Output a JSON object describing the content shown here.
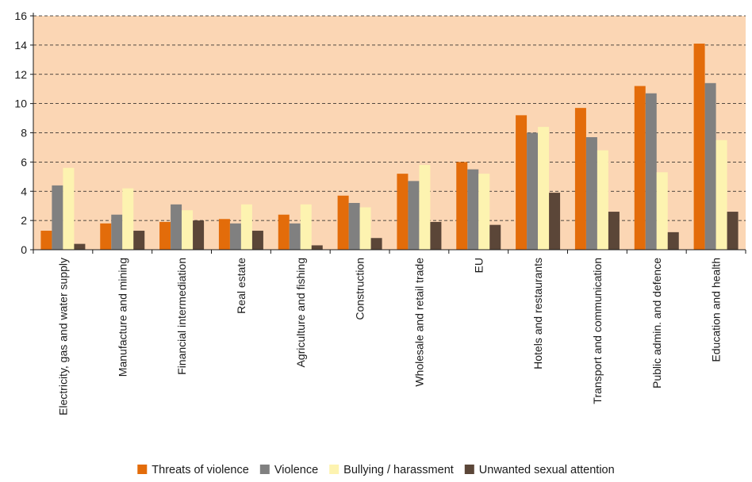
{
  "chart_data": {
    "type": "bar",
    "title": "",
    "xlabel": "",
    "ylabel": "",
    "ylim": [
      0,
      16
    ],
    "yticks": [
      "0",
      "2",
      "4",
      "6",
      "8",
      "10",
      "12",
      "14",
      "16"
    ],
    "grid": "horizontal dashed",
    "legend_position": "bottom",
    "plot_background": "#fbd6b4",
    "categories": [
      "Electricity, gas and water supply",
      "Manufacture and mining",
      "Financial intermediation",
      "Real estate",
      "Agriculture and fishing",
      "Construction",
      "Wholesale and retail trade",
      "EU",
      "Hotels and restaurants",
      "Transport and communication",
      "Public admin. and defence",
      "Education and health"
    ],
    "series": [
      {
        "name": "Threats of violence",
        "color": "#e36c0a",
        "values": [
          1.3,
          1.8,
          1.9,
          2.1,
          2.4,
          3.7,
          5.2,
          6.0,
          9.2,
          9.7,
          11.2,
          14.1
        ]
      },
      {
        "name": "Violence",
        "color": "#808080",
        "values": [
          4.4,
          2.4,
          3.1,
          1.8,
          1.8,
          3.2,
          4.7,
          5.5,
          8.0,
          7.7,
          10.7,
          11.4
        ]
      },
      {
        "name": "Bullying / harassment",
        "color": "#fdf3b0",
        "values": [
          5.6,
          4.2,
          2.7,
          3.1,
          3.1,
          2.9,
          5.8,
          5.2,
          8.4,
          6.8,
          5.3,
          7.5
        ]
      },
      {
        "name": "Unwanted sexual attention",
        "color": "#5b4638",
        "values": [
          0.4,
          1.3,
          2.0,
          1.3,
          0.3,
          0.8,
          1.9,
          1.7,
          3.9,
          2.6,
          1.2,
          2.6
        ]
      }
    ]
  }
}
